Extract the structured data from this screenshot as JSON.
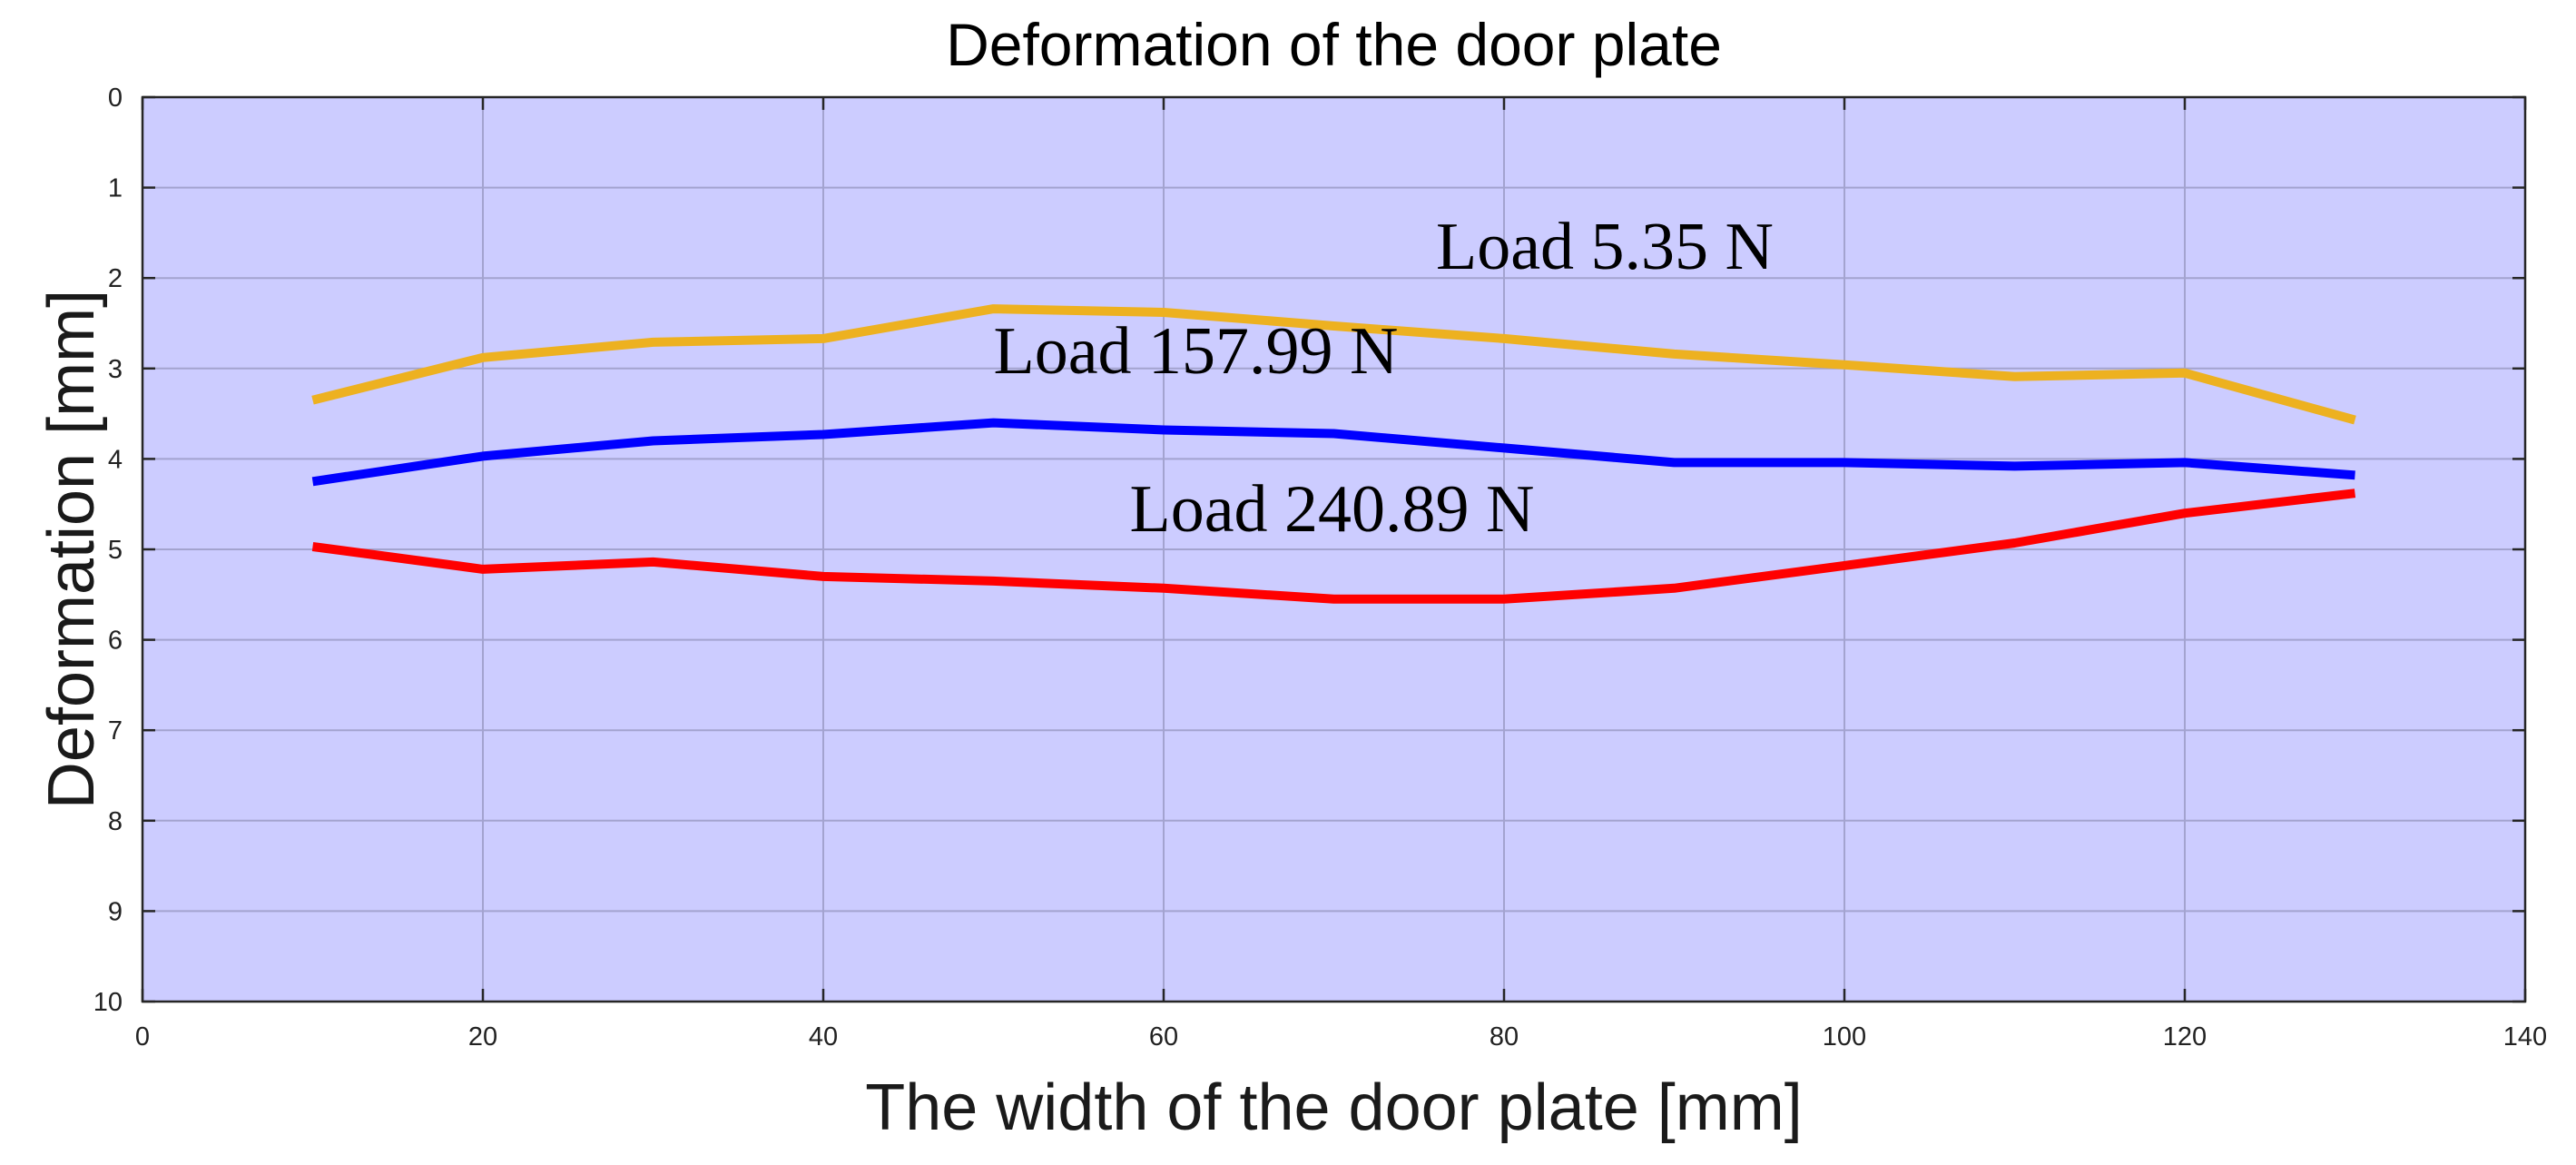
{
  "chart_data": {
    "type": "line",
    "title": "Deformation of the door plate",
    "xlabel": "The width of the door plate [mm]",
    "ylabel": "Deformation [mm]",
    "xlim": [
      0,
      140
    ],
    "ylim": [
      0,
      10
    ],
    "y_reversed": true,
    "grid": true,
    "x_ticks": [
      0,
      20,
      40,
      60,
      80,
      100,
      120,
      140
    ],
    "y_ticks": [
      0,
      1,
      2,
      3,
      4,
      5,
      6,
      7,
      8,
      9,
      10
    ],
    "plot_background": "#ccccff",
    "x": [
      10,
      20,
      30,
      40,
      50,
      60,
      70,
      80,
      90,
      100,
      110,
      120,
      130
    ],
    "series": [
      {
        "color": "#edb120",
        "values": [
          3.35,
          2.88,
          2.71,
          2.67,
          2.34,
          2.38,
          2.53,
          2.67,
          2.84,
          2.96,
          3.09,
          3.05,
          3.57
        ]
      },
      {
        "color": "#0000ff",
        "values": [
          4.25,
          3.97,
          3.8,
          3.73,
          3.6,
          3.68,
          3.72,
          3.88,
          4.04,
          4.04,
          4.08,
          4.04,
          4.18
        ]
      },
      {
        "color": "#ff0000",
        "values": [
          4.97,
          5.22,
          5.14,
          5.3,
          5.35,
          5.43,
          5.55,
          5.55,
          5.43,
          5.18,
          4.93,
          4.6,
          4.38
        ]
      }
    ],
    "annotations": [
      {
        "text": "Load 5.35 N",
        "x": 76,
        "y": 1.9
      },
      {
        "text": "Load 157.99 N",
        "x": 50,
        "y": 3.05
      },
      {
        "text": "Load 240.89 N",
        "x": 58,
        "y": 4.8
      }
    ]
  }
}
